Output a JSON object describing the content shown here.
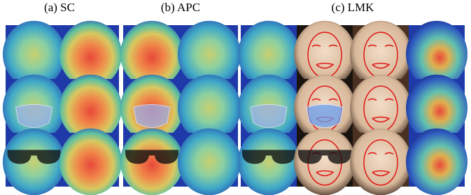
{
  "panels": [
    {
      "label": "(a) SC"
    },
    {
      "label": "(b) APC"
    },
    {
      "label": "(c) LMK"
    }
  ]
}
